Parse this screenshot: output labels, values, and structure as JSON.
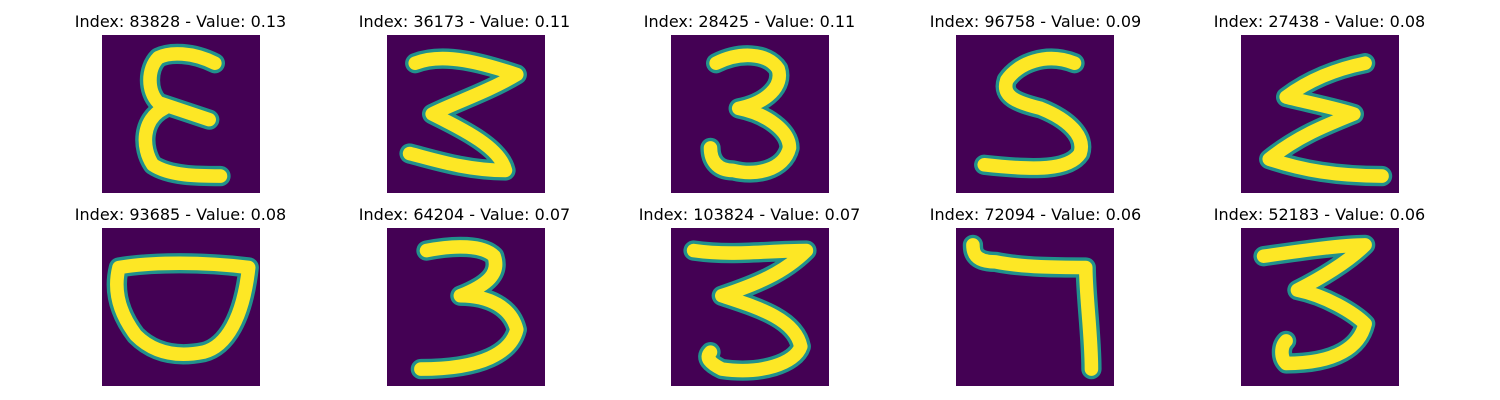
{
  "figure": {
    "colors": {
      "background": "#440154",
      "stroke": "#fde725",
      "edge": "#21918c"
    },
    "samples": [
      {
        "index": "83828",
        "value": "0.13",
        "title": "Index: 83828 - Value: 0.13",
        "digit_icon": "epsilon-like-3-icon"
      },
      {
        "index": "36173",
        "value": "0.11",
        "title": "Index: 36173 - Value: 0.11",
        "digit_icon": "digit-3-icon"
      },
      {
        "index": "28425",
        "value": "0.11",
        "title": "Index: 28425 - Value: 0.11",
        "digit_icon": "digit-3-icon"
      },
      {
        "index": "96758",
        "value": "0.09",
        "title": "Index: 96758 - Value: 0.09",
        "digit_icon": "digit-5-icon"
      },
      {
        "index": "27438",
        "value": "0.08",
        "title": "Index: 27438 - Value: 0.08",
        "digit_icon": "sigma-like-icon"
      },
      {
        "index": "93685",
        "value": "0.08",
        "title": "Index: 93685 - Value: 0.08",
        "digit_icon": "cup-shape-icon"
      },
      {
        "index": "64204",
        "value": "0.07",
        "title": "Index: 64204 - Value: 0.07",
        "digit_icon": "digit-3-icon"
      },
      {
        "index": "103824",
        "value": "0.07",
        "title": "Index: 103824 - Value: 0.07",
        "digit_icon": "digit-3-icon"
      },
      {
        "index": "72094",
        "value": "0.06",
        "title": "Index: 72094 - Value: 0.06",
        "digit_icon": "digit-7-icon"
      },
      {
        "index": "52183",
        "value": "0.06",
        "title": "Index: 52183 - Value: 0.06",
        "digit_icon": "digit-3-icon"
      }
    ]
  }
}
